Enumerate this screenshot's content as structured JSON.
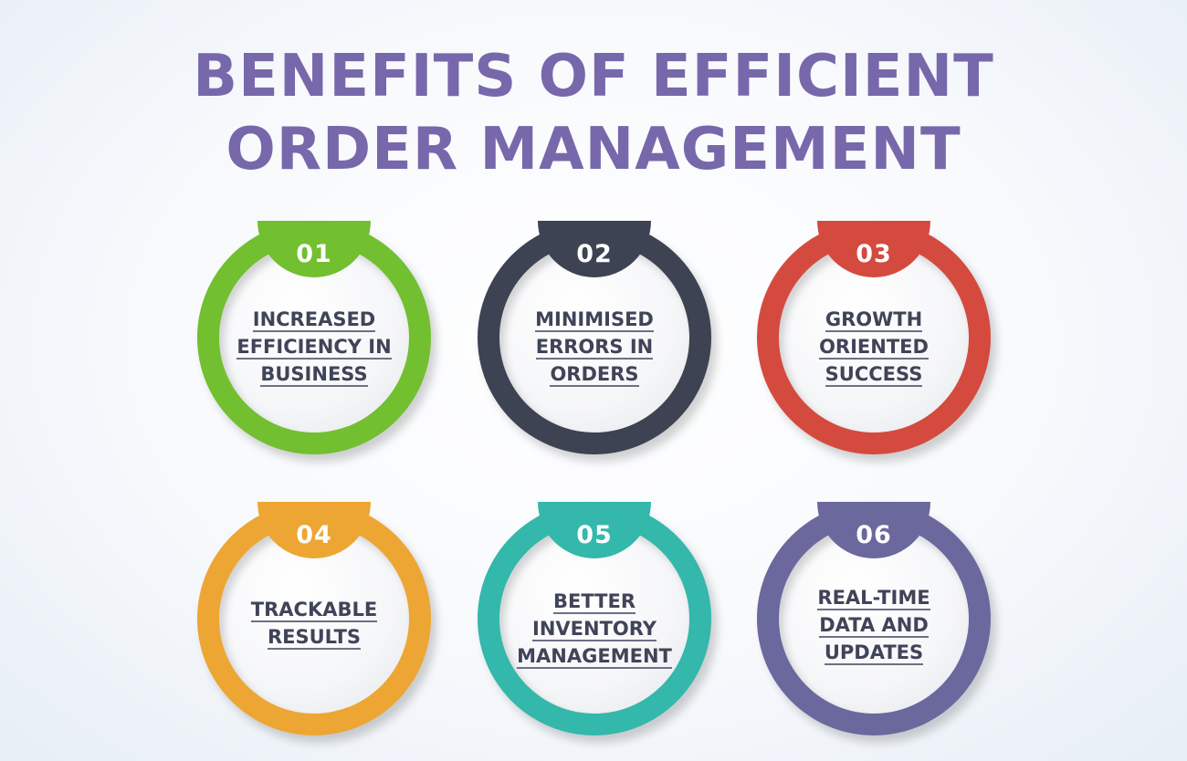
{
  "title": {
    "line1": "BENEFITS OF EFFICIENT",
    "line2": "ORDER MANAGEMENT"
  },
  "colors": {
    "title": "#7768ab",
    "text": "#3f4458",
    "item1": "#72bf30",
    "item2": "#3d4352",
    "item3": "#d54a3f",
    "item4": "#eda633",
    "item5": "#33b8ab",
    "item6": "#6a689d"
  },
  "items": [
    {
      "number": "01",
      "lines": [
        "INCREASED",
        "EFFICIENCY IN",
        "BUSINESS"
      ]
    },
    {
      "number": "02",
      "lines": [
        "MINIMISED",
        "ERRORS IN",
        "ORDERS"
      ]
    },
    {
      "number": "03",
      "lines": [
        "GROWTH",
        "ORIENTED",
        "SUCCESS"
      ]
    },
    {
      "number": "04",
      "lines": [
        "TRACKABLE",
        "RESULTS"
      ]
    },
    {
      "number": "05",
      "lines": [
        "BETTER",
        "INVENTORY",
        "MANAGEMENT"
      ]
    },
    {
      "number": "06",
      "lines": [
        "REAL-TIME",
        "DATA AND",
        "UPDATES"
      ]
    }
  ]
}
